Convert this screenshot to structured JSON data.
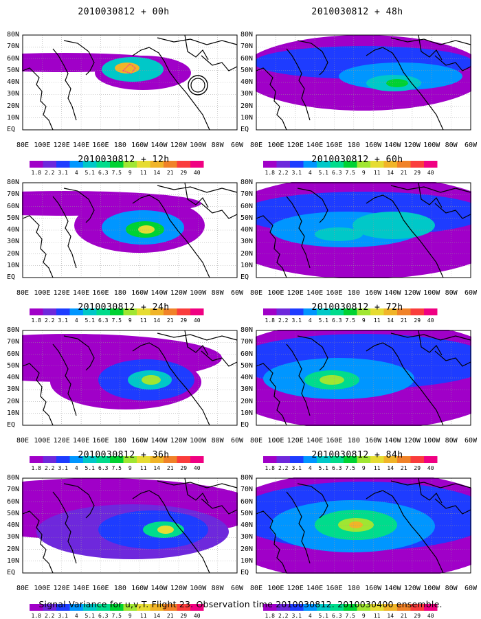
{
  "panels": [
    {
      "title": "2010030812 + 00h",
      "lead": 0
    },
    {
      "title": "2010030812 + 48h",
      "lead": 48
    },
    {
      "title": "2010030812 + 12h",
      "lead": 12
    },
    {
      "title": "2010030812 + 60h",
      "lead": 60
    },
    {
      "title": "2010030812 + 24h",
      "lead": 24
    },
    {
      "title": "2010030812 + 72h",
      "lead": 72
    },
    {
      "title": "2010030812 + 36h",
      "lead": 36
    },
    {
      "title": "2010030812 + 84h",
      "lead": 84
    }
  ],
  "lat_labels": [
    "80N",
    "70N",
    "60N",
    "50N",
    "40N",
    "30N",
    "20N",
    "10N",
    "EQ"
  ],
  "lon_labels": [
    "80E",
    "100E",
    "120E",
    "140E",
    "160E",
    "180",
    "160W",
    "140W",
    "120W",
    "100W",
    "80W",
    "60W"
  ],
  "colorbar": {
    "labels": [
      "1.8",
      "2.2",
      "3.1",
      "4",
      "5.1",
      "6.3",
      "7.5",
      "9",
      "11",
      "14",
      "21",
      "29",
      "40"
    ],
    "colors": [
      "#a000c8",
      "#6e28dc",
      "#1e3cff",
      "#0096ff",
      "#00c8c8",
      "#00dc8c",
      "#00d232",
      "#a0e632",
      "#e6dc32",
      "#f0b428",
      "#f08228",
      "#fa3c3c",
      "#f00082"
    ]
  },
  "footer": "Signal Variance for u,v,T. Flight 23. Observation time 2010030812. 2010030400 ensemble."
}
